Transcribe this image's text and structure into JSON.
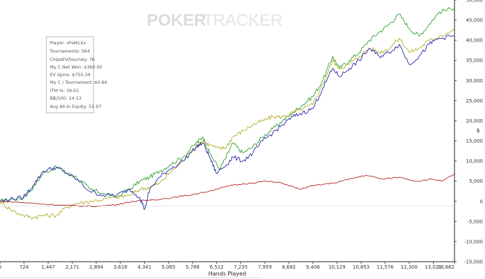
{
  "watermark": {
    "part1": "POKER",
    "part2": "TRACKER"
  },
  "stats_box": {
    "lines": [
      "Player: xFeN1Xx",
      "Tournaments: 564",
      "ChipsEV/tourney: 76",
      "My C Net Won: $360.00",
      "EV Spins: $755.34",
      "My C / Tournament: $0.64",
      "ITM %: 39.01",
      "BB/100: 14.13",
      "Avg All-In Equity: 51.97"
    ]
  },
  "chart_data": {
    "type": "line",
    "xlabel": "Hands Played",
    "ylabel": "$",
    "x_ticks": [
      "0",
      "724",
      "1,447",
      "2,171",
      "2,894",
      "3,618",
      "4,341",
      "5,065",
      "5,788",
      "6,512",
      "7,235",
      "7,959",
      "8,682",
      "9,406",
      "10,129",
      "10,853",
      "11,576",
      "12,300",
      "13,023",
      "13,662"
    ],
    "y_ticks": [
      "50,000",
      "45,000",
      "40,000",
      "35,000",
      "30,000",
      "25,000",
      "20,000",
      "15,000",
      "10,000",
      "5,000",
      "0",
      "-5,000",
      "-10,000",
      "-15,000"
    ],
    "xlim": [
      0,
      13662
    ],
    "ylim": [
      -15000,
      50000
    ],
    "grid": false,
    "legend": "none",
    "series": [
      {
        "color": "#2ca02c",
        "x": [
          0,
          300,
          700,
          1000,
          1300,
          1700,
          2000,
          2300,
          2700,
          3100,
          3500,
          3900,
          4200,
          4500,
          4800,
          5100,
          5500,
          5900,
          6100,
          6300,
          6600,
          6800,
          7000,
          7300,
          7600,
          7900,
          8200,
          8500,
          8800,
          9100,
          9400,
          9700,
          10000,
          10200,
          10500,
          10800,
          11100,
          11400,
          11700,
          12000,
          12300,
          12600,
          12900,
          13200,
          13662
        ],
        "y": [
          0,
          500,
          800,
          3500,
          7000,
          8500,
          7000,
          6000,
          3000,
          2000,
          1000,
          3000,
          5000,
          6000,
          7500,
          9000,
          11000,
          14500,
          16000,
          12000,
          8000,
          11000,
          14500,
          12000,
          13500,
          16000,
          18000,
          20000,
          22000,
          24000,
          26000,
          30000,
          36000,
          33000,
          35000,
          37000,
          40000,
          42000,
          44000,
          46500,
          43000,
          41000,
          44000,
          47000,
          48000
        ]
      },
      {
        "color": "#b5aa2a",
        "x": [
          0,
          300,
          700,
          1000,
          1300,
          1700,
          2000,
          2300,
          2700,
          3100,
          3500,
          3900,
          4200,
          4500,
          4800,
          5100,
          5500,
          5900,
          6100,
          6300,
          6600,
          6800,
          7000,
          7300,
          7600,
          7900,
          8200,
          8500,
          8800,
          9100,
          9400,
          9700,
          10000,
          10200,
          10500,
          10800,
          11100,
          11400,
          11700,
          12000,
          12300,
          12600,
          12900,
          13200,
          13662
        ],
        "y": [
          0,
          -2000,
          -3500,
          -4000,
          -3500,
          -3500,
          -1500,
          -500,
          0,
          500,
          1000,
          1500,
          3000,
          3500,
          4500,
          7000,
          10000,
          14000,
          15000,
          14000,
          13000,
          13500,
          16000,
          17500,
          19000,
          20000,
          21000,
          21000,
          22000,
          23000,
          24000,
          29000,
          35000,
          33000,
          34000,
          36000,
          38000,
          37000,
          38000,
          40500,
          37000,
          38000,
          40000,
          41000,
          42500
        ]
      },
      {
        "color": "#2222aa",
        "x": [
          0,
          300,
          700,
          1000,
          1300,
          1700,
          2000,
          2300,
          2700,
          3100,
          3500,
          3900,
          4200,
          4350,
          4500,
          4800,
          5100,
          5500,
          5900,
          6100,
          6300,
          6500,
          6800,
          7000,
          7300,
          7600,
          7900,
          8200,
          8500,
          8800,
          9100,
          9400,
          9700,
          10000,
          10200,
          10500,
          10800,
          11100,
          11400,
          11700,
          12000,
          12300,
          12600,
          12900,
          13200,
          13662
        ],
        "y": [
          0,
          500,
          1000,
          4000,
          7500,
          8500,
          7000,
          5500,
          2500,
          1500,
          1500,
          3000,
          1000,
          -2000,
          3000,
          6000,
          8000,
          10000,
          13500,
          14500,
          11000,
          7000,
          9000,
          11000,
          10000,
          12000,
          15000,
          17000,
          19000,
          21000,
          22000,
          23000,
          28000,
          33000,
          31000,
          33000,
          35000,
          38000,
          36000,
          37000,
          39000,
          34000,
          36000,
          39000,
          40500,
          41000
        ]
      },
      {
        "color": "#b22222",
        "x": [
          0,
          500,
          1000,
          1500,
          2000,
          2500,
          3000,
          3500,
          4000,
          4500,
          5000,
          5500,
          6000,
          6500,
          7000,
          7500,
          8000,
          8500,
          9000,
          9500,
          10000,
          10500,
          11000,
          11500,
          12000,
          12500,
          13000,
          13300,
          13662
        ],
        "y": [
          0,
          -200,
          -500,
          -800,
          -1000,
          -1200,
          -1200,
          -800,
          0,
          300,
          700,
          1300,
          2000,
          3000,
          4000,
          4500,
          5000,
          4500,
          3000,
          4000,
          4500,
          5500,
          6500,
          5500,
          6000,
          5000,
          5500,
          5000,
          6800
        ]
      }
    ]
  }
}
